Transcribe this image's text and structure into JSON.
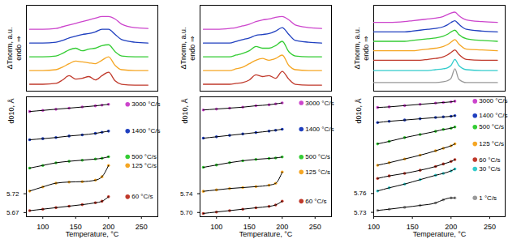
{
  "chart_data": [
    {
      "type": "line",
      "ylabel": "ΔTnorm, a.u.",
      "annotations": [
        "endo ⇒"
      ],
      "tick_labels": false,
      "xlim": [
        75,
        275
      ],
      "ylim": [
        0,
        100
      ],
      "x": [
        80,
        100,
        120,
        130,
        140,
        150,
        160,
        170,
        180,
        190,
        200,
        210,
        220,
        240,
        260
      ],
      "series": [
        {
          "color": "#cc44cc",
          "values": [
            72,
            72,
            73,
            75,
            77,
            79,
            81,
            83,
            85,
            87,
            87,
            84,
            78,
            74,
            73
          ]
        },
        {
          "color": "#1f3fbf",
          "values": [
            56,
            56,
            57,
            59,
            62,
            64,
            66,
            67,
            69,
            72,
            72,
            66,
            60,
            57,
            56
          ]
        },
        {
          "color": "#33cc33",
          "values": [
            40,
            40,
            41,
            44,
            48,
            50,
            47,
            49,
            50,
            53,
            54,
            46,
            41,
            40,
            40
          ]
        },
        {
          "color": "#f5a623",
          "values": [
            24,
            24,
            25,
            28,
            32,
            35,
            34,
            33,
            32,
            36,
            40,
            30,
            25,
            24,
            24
          ]
        },
        {
          "color": "#c0392b",
          "values": [
            8,
            8,
            9,
            13,
            18,
            14,
            15,
            17,
            13,
            18,
            22,
            12,
            8,
            7,
            7
          ]
        }
      ]
    },
    {
      "type": "line",
      "ylabel": "ΔTnorm, a.u.",
      "annotations": [
        "endo ⇒"
      ],
      "tick_labels": false,
      "xlim": [
        75,
        275
      ],
      "ylim": [
        0,
        100
      ],
      "x": [
        80,
        100,
        120,
        130,
        140,
        150,
        160,
        170,
        180,
        190,
        200,
        210,
        220,
        240,
        260
      ],
      "series": [
        {
          "color": "#cc44cc",
          "values": [
            72,
            72,
            73,
            74,
            76,
            78,
            81,
            83,
            84,
            86,
            87,
            83,
            77,
            74,
            73
          ]
        },
        {
          "color": "#1f3fbf",
          "values": [
            56,
            56,
            56,
            58,
            60,
            62,
            65,
            66,
            67,
            70,
            74,
            66,
            59,
            57,
            56
          ]
        },
        {
          "color": "#33cc33",
          "values": [
            40,
            40,
            40,
            42,
            44,
            47,
            52,
            50,
            50,
            53,
            58,
            46,
            41,
            40,
            40
          ]
        },
        {
          "color": "#f5a623",
          "values": [
            24,
            24,
            24,
            26,
            28,
            32,
            36,
            38,
            36,
            38,
            42,
            30,
            25,
            24,
            24
          ]
        },
        {
          "color": "#c0392b",
          "values": [
            8,
            8,
            8,
            9,
            10,
            13,
            19,
            17,
            18,
            15,
            23,
            14,
            8,
            7,
            7
          ]
        }
      ]
    },
    {
      "type": "line",
      "ylabel": "ΔTnorm, a.u.",
      "annotations": [
        "endo ⇒"
      ],
      "tick_labels": false,
      "xlim": [
        100,
        270
      ],
      "ylim": [
        0,
        100
      ],
      "x": [
        100,
        120,
        140,
        150,
        160,
        170,
        180,
        190,
        195,
        200,
        205,
        210,
        220,
        240,
        260
      ],
      "series": [
        {
          "color": "#cc44cc",
          "values": [
            80,
            80,
            81,
            82,
            83,
            84,
            85,
            87,
            89,
            91,
            92,
            88,
            83,
            81,
            80
          ]
        },
        {
          "color": "#1f3fbf",
          "values": [
            69,
            69,
            69,
            70,
            71,
            72,
            73,
            75,
            77,
            80,
            82,
            78,
            72,
            70,
            69
          ]
        },
        {
          "color": "#33cc33",
          "values": [
            58,
            58,
            58,
            59,
            60,
            61,
            62,
            64,
            66,
            69,
            71,
            66,
            61,
            59,
            58
          ]
        },
        {
          "color": "#f5a623",
          "values": [
            47,
            47,
            47,
            47,
            48,
            49,
            50,
            52,
            54,
            57,
            60,
            55,
            49,
            48,
            47
          ]
        },
        {
          "color": "#c0392b",
          "values": [
            36,
            36,
            36,
            36,
            36,
            37,
            38,
            40,
            42,
            45,
            48,
            43,
            37,
            36,
            36
          ]
        },
        {
          "color": "#33cccc",
          "values": [
            24,
            24,
            24,
            24,
            24,
            24,
            25,
            26,
            27,
            30,
            37,
            30,
            25,
            24,
            24
          ]
        },
        {
          "color": "#999999",
          "values": [
            10,
            10,
            10,
            10,
            10,
            10,
            10,
            11,
            12,
            15,
            26,
            14,
            10,
            10,
            10
          ]
        }
      ]
    },
    {
      "type": "line",
      "marker": "circle",
      "legend": "right",
      "xlabel": "Temperature, °C",
      "ylabel": "d010, Å",
      "xlim": [
        75,
        275
      ],
      "ylim": [
        5.659,
        5.977
      ],
      "xticks": [
        100,
        150,
        200,
        250
      ],
      "yticks": [
        5.67,
        5.72
      ],
      "x": [
        80,
        100,
        120,
        140,
        160,
        180,
        190,
        200
      ],
      "series": [
        {
          "name": "3000 °C/s",
          "color": "#cc44cc",
          "values": [
            5.938,
            5.941,
            5.944,
            5.947,
            5.95,
            5.953,
            5.955,
            5.957
          ]
        },
        {
          "name": "1400 °C/s",
          "color": "#1f3fbf",
          "values": [
            5.863,
            5.866,
            5.869,
            5.873,
            5.876,
            5.88,
            5.883,
            5.886
          ]
        },
        {
          "name": "500 °C/s",
          "color": "#33cc33",
          "values": [
            5.788,
            5.795,
            5.802,
            5.806,
            5.809,
            5.812,
            5.814,
            5.818
          ]
        },
        {
          "name": "125 °C/s",
          "color": "#f5a623",
          "values": [
            5.727,
            5.738,
            5.748,
            5.751,
            5.752,
            5.756,
            5.765,
            5.795
          ]
        },
        {
          "name": "60 °C/s",
          "color": "#c0392b",
          "values": [
            5.675,
            5.679,
            5.683,
            5.687,
            5.691,
            5.696,
            5.7,
            5.712
          ]
        }
      ]
    },
    {
      "type": "line",
      "marker": "circle",
      "legend": "right",
      "xlabel": "Temperature, °C",
      "ylabel": "d010, Å",
      "xlim": [
        75,
        275
      ],
      "ylim": [
        5.691,
        5.946
      ],
      "xticks": [
        100,
        150,
        200,
        250
      ],
      "yticks": [
        {
          "value": 5.7,
          "label": "5.70"
        },
        5.74
      ],
      "x": [
        80,
        100,
        120,
        140,
        160,
        180,
        190,
        200
      ],
      "series": [
        {
          "name": "3000 °C/s",
          "color": "#cc44cc",
          "values": [
            5.918,
            5.92,
            5.922,
            5.924,
            5.927,
            5.929,
            5.931,
            5.933
          ]
        },
        {
          "name": "1400 °C/s",
          "color": "#1f3fbf",
          "values": [
            5.858,
            5.861,
            5.864,
            5.867,
            5.87,
            5.873,
            5.875,
            5.877
          ]
        },
        {
          "name": "500 °C/s",
          "color": "#33cc33",
          "values": [
            5.796,
            5.801,
            5.806,
            5.81,
            5.813,
            5.815,
            5.816,
            5.818
          ]
        },
        {
          "name": "125 °C/s",
          "color": "#f5a623",
          "values": [
            5.745,
            5.748,
            5.751,
            5.753,
            5.755,
            5.758,
            5.762,
            5.786
          ]
        },
        {
          "name": "60 °C/s",
          "color": "#c0392b",
          "values": [
            5.698,
            5.701,
            5.704,
            5.707,
            5.71,
            5.713,
            5.716,
            5.724
          ]
        }
      ]
    },
    {
      "type": "line",
      "marker": "circle",
      "legend": "right",
      "xlabel": "Temperature, °C",
      "ylabel": "d010, Å",
      "xlim": [
        100,
        270
      ],
      "ylim": [
        5.723,
        5.914
      ],
      "xticks": [
        100,
        150,
        200,
        250
      ],
      "yticks": [
        5.73,
        5.76
      ],
      "x": [
        105,
        120,
        140,
        160,
        180,
        190,
        200,
        205
      ],
      "series": [
        {
          "name": "3000 °C/s",
          "color": "#cc44cc",
          "values": [
            5.897,
            5.898,
            5.9,
            5.902,
            5.904,
            5.905,
            5.906,
            5.907
          ]
        },
        {
          "name": "1400 °C/s",
          "color": "#1f3fbf",
          "values": [
            5.873,
            5.875,
            5.877,
            5.879,
            5.881,
            5.882,
            5.883,
            5.884
          ]
        },
        {
          "name": "500 °C/s",
          "color": "#33cc33",
          "values": [
            5.839,
            5.843,
            5.849,
            5.854,
            5.859,
            5.862,
            5.864,
            5.866
          ]
        },
        {
          "name": "125 °C/s",
          "color": "#f5a623",
          "values": [
            5.805,
            5.809,
            5.815,
            5.821,
            5.828,
            5.832,
            5.836,
            5.839
          ]
        },
        {
          "name": "60 °C/s",
          "color": "#c0392b",
          "values": [
            5.784,
            5.788,
            5.792,
            5.797,
            5.803,
            5.807,
            5.811,
            5.814
          ]
        },
        {
          "name": "30 °C/s",
          "color": "#33cccc",
          "values": [
            5.764,
            5.769,
            5.775,
            5.782,
            5.789,
            5.792,
            5.796,
            5.799
          ]
        },
        {
          "name": "1 °C/s",
          "color": "#999999",
          "values": [
            5.733,
            5.735,
            5.738,
            5.741,
            5.745,
            5.75,
            5.753,
            5.753
          ]
        }
      ]
    }
  ]
}
